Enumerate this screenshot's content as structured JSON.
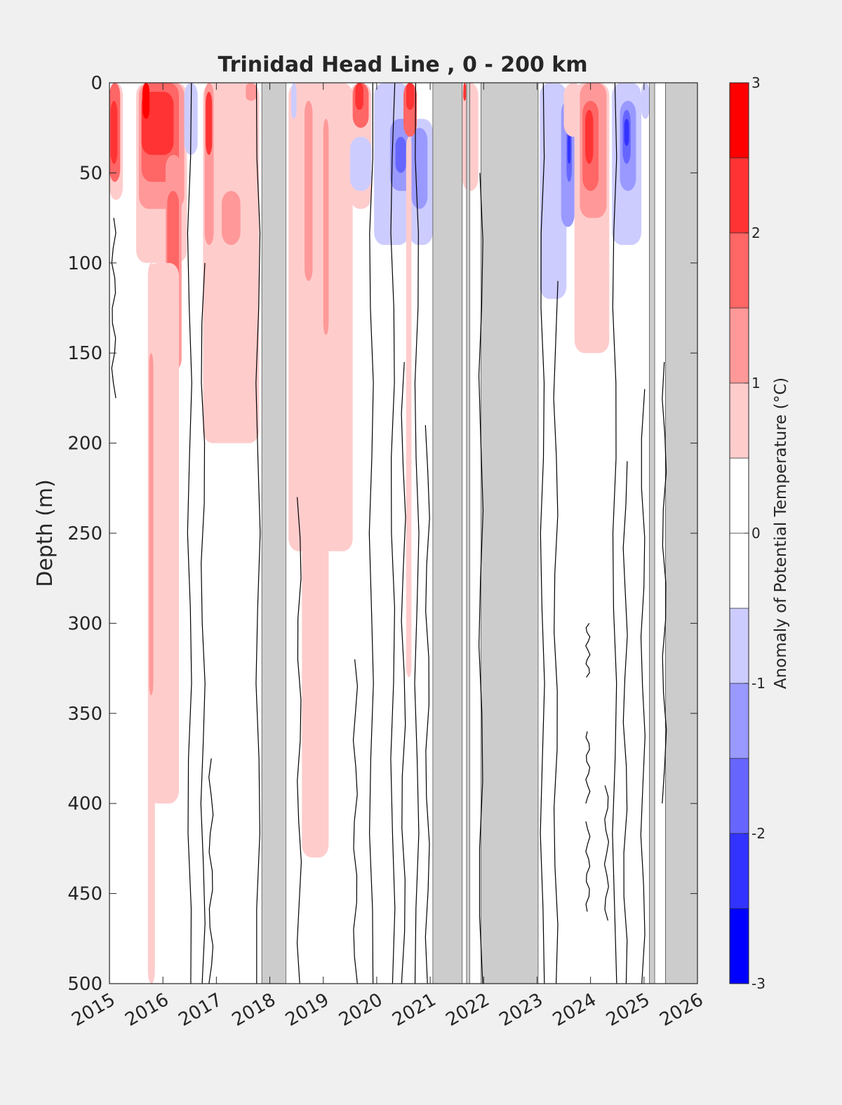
{
  "chart_data": {
    "type": "heatmap",
    "title": "Trinidad Head Line , 0 - 200 km",
    "ylabel": "Depth (m)",
    "xlabel": "",
    "x_ticks": [
      "2015",
      "2016",
      "2017",
      "2018",
      "2019",
      "2020",
      "2021",
      "2022",
      "2023",
      "2024",
      "2025",
      "2026"
    ],
    "x_range": [
      2015,
      2026
    ],
    "y_ticks": [
      0,
      50,
      100,
      150,
      200,
      250,
      300,
      350,
      400,
      450,
      500
    ],
    "y_range": [
      0,
      500
    ],
    "y_reversed": true,
    "colorbar": {
      "label": "Anomaly of Potential Temperature (°C)",
      "ticks": [
        3,
        2,
        1,
        0,
        -1,
        -2,
        -3
      ],
      "range": [
        -3,
        3
      ],
      "levels": [
        {
          "from": 2.5,
          "to": 3.0,
          "color": "#ff0000"
        },
        {
          "from": 2.0,
          "to": 2.5,
          "color": "#ff3333"
        },
        {
          "from": 1.5,
          "to": 2.0,
          "color": "#ff6666"
        },
        {
          "from": 1.0,
          "to": 1.5,
          "color": "#ff9999"
        },
        {
          "from": 0.5,
          "to": 1.0,
          "color": "#ffcccc"
        },
        {
          "from": 0.0,
          "to": 0.5,
          "color": "#ffffff"
        },
        {
          "from": -0.5,
          "to": 0.0,
          "color": "#ffffff"
        },
        {
          "from": -1.0,
          "to": -0.5,
          "color": "#ccccff"
        },
        {
          "from": -1.5,
          "to": -1.0,
          "color": "#9999ff"
        },
        {
          "from": -2.0,
          "to": -1.5,
          "color": "#6666ff"
        },
        {
          "from": -2.5,
          "to": -2.0,
          "color": "#3333ff"
        },
        {
          "from": -3.0,
          "to": -2.5,
          "color": "#0000ff"
        }
      ]
    },
    "no_data_color": "#cccccc",
    "no_data_periods": [
      [
        2017.85,
        2018.3
      ],
      [
        2021.05,
        2021.6
      ],
      [
        2021.68,
        2021.74
      ],
      [
        2021.95,
        2023.02
      ],
      [
        2025.1,
        2025.2
      ],
      [
        2025.4,
        2026.0
      ]
    ],
    "anomaly_patches": [
      {
        "x": [
          2015.0,
          2015.25
        ],
        "depth": [
          0,
          65
        ],
        "value": 0.7
      },
      {
        "x": [
          2015.0,
          2015.2
        ],
        "depth": [
          0,
          55
        ],
        "value": 1.7
      },
      {
        "x": [
          2015.02,
          2015.15
        ],
        "depth": [
          10,
          45
        ],
        "value": 2.2
      },
      {
        "x": [
          2015.5,
          2016.45
        ],
        "depth": [
          0,
          100
        ],
        "value": 0.8
      },
      {
        "x": [
          2015.55,
          2016.4
        ],
        "depth": [
          0,
          70
        ],
        "value": 1.3
      },
      {
        "x": [
          2015.6,
          2016.3
        ],
        "depth": [
          0,
          55
        ],
        "value": 1.8
      },
      {
        "x": [
          2015.6,
          2016.2
        ],
        "depth": [
          5,
          40
        ],
        "value": 2.2
      },
      {
        "x": [
          2015.62,
          2015.75
        ],
        "depth": [
          0,
          20
        ],
        "value": 2.7
      },
      {
        "x": [
          2016.05,
          2016.35
        ],
        "depth": [
          40,
          160
        ],
        "value": 1.3
      },
      {
        "x": [
          2016.08,
          2016.3
        ],
        "depth": [
          60,
          130
        ],
        "value": 1.8
      },
      {
        "x": [
          2015.72,
          2016.3
        ],
        "depth": [
          100,
          400
        ],
        "value": 0.7
      },
      {
        "x": [
          2015.72,
          2015.85
        ],
        "depth": [
          100,
          500
        ],
        "value": 0.7
      },
      {
        "x": [
          2015.74,
          2015.82
        ],
        "depth": [
          150,
          340
        ],
        "value": 1.2
      },
      {
        "x": [
          2016.4,
          2016.65
        ],
        "depth": [
          0,
          40
        ],
        "value": -0.7
      },
      {
        "x": [
          2016.75,
          2017.8
        ],
        "depth": [
          0,
          200
        ],
        "value": 0.7
      },
      {
        "x": [
          2016.78,
          2016.95
        ],
        "depth": [
          0,
          90
        ],
        "value": 1.3
      },
      {
        "x": [
          2016.8,
          2016.92
        ],
        "depth": [
          5,
          40
        ],
        "value": 2.2
      },
      {
        "x": [
          2017.1,
          2017.45
        ],
        "depth": [
          60,
          90
        ],
        "value": 1.2
      },
      {
        "x": [
          2017.55,
          2017.75
        ],
        "depth": [
          0,
          10
        ],
        "value": 1.2
      },
      {
        "x": [
          2018.35,
          2019.55
        ],
        "depth": [
          0,
          260
        ],
        "value": 0.7
      },
      {
        "x": [
          2018.6,
          2019.1
        ],
        "depth": [
          0,
          430
        ],
        "value": 0.7
      },
      {
        "x": [
          2018.65,
          2018.8
        ],
        "depth": [
          10,
          110
        ],
        "value": 1.2
      },
      {
        "x": [
          2019.0,
          2019.1
        ],
        "depth": [
          20,
          140
        ],
        "value": 1.2
      },
      {
        "x": [
          2018.4,
          2018.5
        ],
        "depth": [
          0,
          20
        ],
        "value": -0.7
      },
      {
        "x": [
          2019.5,
          2019.9
        ],
        "depth": [
          0,
          70
        ],
        "value": 0.8
      },
      {
        "x": [
          2019.55,
          2019.85
        ],
        "depth": [
          0,
          25
        ],
        "value": 1.8
      },
      {
        "x": [
          2019.6,
          2019.75
        ],
        "depth": [
          0,
          15
        ],
        "value": 2.4
      },
      {
        "x": [
          2019.5,
          2019.9
        ],
        "depth": [
          30,
          60
        ],
        "value": -0.7
      },
      {
        "x": [
          2019.95,
          2020.6
        ],
        "depth": [
          0,
          90
        ],
        "value": -0.7
      },
      {
        "x": [
          2020.25,
          2020.75
        ],
        "depth": [
          20,
          60
        ],
        "value": -1.2
      },
      {
        "x": [
          2020.35,
          2020.55
        ],
        "depth": [
          30,
          50
        ],
        "value": -1.7
      },
      {
        "x": [
          2020.6,
          2021.05
        ],
        "depth": [
          20,
          90
        ],
        "value": -0.8
      },
      {
        "x": [
          2020.65,
          2020.95
        ],
        "depth": [
          25,
          70
        ],
        "value": -1.3
      },
      {
        "x": [
          2020.5,
          2020.75
        ],
        "depth": [
          0,
          30
        ],
        "value": 1.6
      },
      {
        "x": [
          2020.55,
          2020.7
        ],
        "depth": [
          0,
          15
        ],
        "value": 2.4
      },
      {
        "x": [
          2020.55,
          2020.65
        ],
        "depth": [
          30,
          330
        ],
        "value": 0.7
      },
      {
        "x": [
          2021.6,
          2021.9
        ],
        "depth": [
          0,
          60
        ],
        "value": 0.7
      },
      {
        "x": [
          2021.62,
          2021.67
        ],
        "depth": [
          0,
          10
        ],
        "value": 2.2
      },
      {
        "x": [
          2023.05,
          2023.55
        ],
        "depth": [
          0,
          120
        ],
        "value": -0.7
      },
      {
        "x": [
          2023.45,
          2023.7
        ],
        "depth": [
          10,
          80
        ],
        "value": -1.2
      },
      {
        "x": [
          2023.55,
          2023.65
        ],
        "depth": [
          20,
          55
        ],
        "value": -1.8
      },
      {
        "x": [
          2023.57,
          2023.63
        ],
        "depth": [
          28,
          45
        ],
        "value": -2.2
      },
      {
        "x": [
          2023.5,
          2023.85
        ],
        "depth": [
          0,
          30
        ],
        "value": 0.8
      },
      {
        "x": [
          2023.7,
          2024.35
        ],
        "depth": [
          0,
          150
        ],
        "value": 0.7
      },
      {
        "x": [
          2023.8,
          2024.3
        ],
        "depth": [
          0,
          75
        ],
        "value": 1.3
      },
      {
        "x": [
          2023.85,
          2024.15
        ],
        "depth": [
          10,
          60
        ],
        "value": 1.8
      },
      {
        "x": [
          2023.9,
          2024.05
        ],
        "depth": [
          15,
          45
        ],
        "value": 2.2
      },
      {
        "x": [
          2024.4,
          2024.95
        ],
        "depth": [
          0,
          90
        ],
        "value": -0.7
      },
      {
        "x": [
          2024.55,
          2024.85
        ],
        "depth": [
          10,
          60
        ],
        "value": -1.2
      },
      {
        "x": [
          2024.6,
          2024.75
        ],
        "depth": [
          15,
          45
        ],
        "value": -1.7
      },
      {
        "x": [
          2024.63,
          2024.72
        ],
        "depth": [
          20,
          35
        ],
        "value": -2.2
      },
      {
        "x": [
          2024.95,
          2025.1
        ],
        "depth": [
          0,
          20
        ],
        "value": -0.7
      }
    ],
    "zero_contours": [
      {
        "x": 2015.08,
        "depth": [
          75,
          175
        ]
      },
      {
        "x": 2016.5,
        "depth": [
          0,
          500
        ]
      },
      {
        "x": 2016.75,
        "depth": [
          100,
          500
        ]
      },
      {
        "x": 2016.9,
        "depth": [
          375,
          500
        ]
      },
      {
        "x": 2017.78,
        "depth": [
          0,
          500
        ]
      },
      {
        "x": 2018.55,
        "depth": [
          230,
          500
        ]
      },
      {
        "x": 2019.6,
        "depth": [
          320,
          500
        ]
      },
      {
        "x": 2019.9,
        "depth": [
          0,
          500
        ]
      },
      {
        "x": 2020.3,
        "depth": [
          0,
          500
        ]
      },
      {
        "x": 2020.5,
        "depth": [
          155,
          500
        ]
      },
      {
        "x": 2020.75,
        "depth": [
          0,
          500
        ]
      },
      {
        "x": 2020.95,
        "depth": [
          190,
          500
        ]
      },
      {
        "x": 2021.95,
        "depth": [
          50,
          500
        ]
      },
      {
        "x": 2023.1,
        "depth": [
          0,
          500
        ]
      },
      {
        "x": 2023.35,
        "depth": [
          110,
          500
        ]
      },
      {
        "x": 2023.95,
        "depth": [
          300,
          330
        ]
      },
      {
        "x": 2023.95,
        "depth": [
          360,
          400
        ]
      },
      {
        "x": 2023.95,
        "depth": [
          410,
          460
        ]
      },
      {
        "x": 2024.3,
        "depth": [
          390,
          465
        ]
      },
      {
        "x": 2024.45,
        "depth": [
          0,
          500
        ]
      },
      {
        "x": 2024.65,
        "depth": [
          210,
          500
        ]
      },
      {
        "x": 2024.98,
        "depth": [
          170,
          500
        ]
      },
      {
        "x": 2025.38,
        "depth": [
          155,
          400
        ]
      }
    ]
  }
}
